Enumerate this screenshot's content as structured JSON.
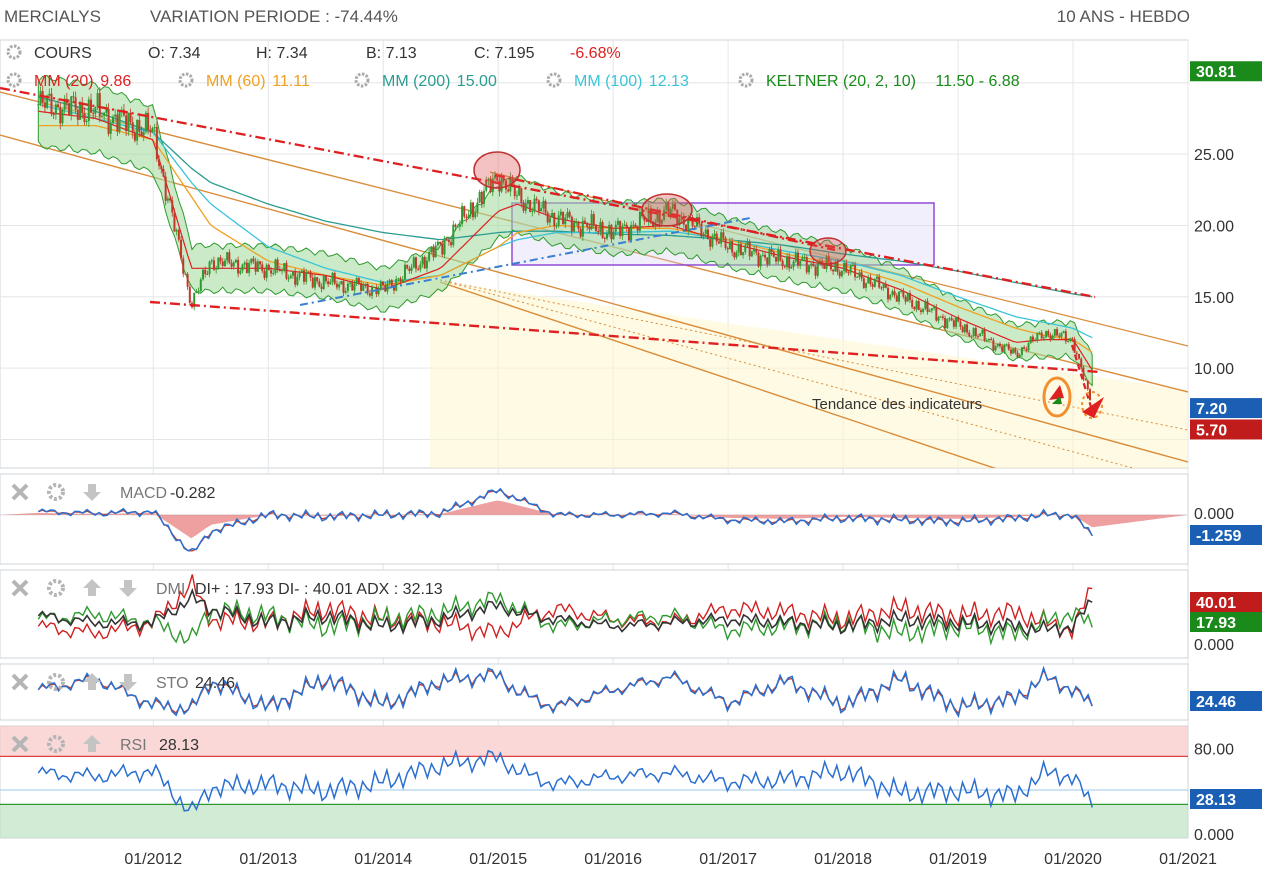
{
  "header": {
    "symbol": "MERCIALYS",
    "variation": "VARIATION PERIODE : -74.44%",
    "range": "10 ANS - HEBDO"
  },
  "quote": {
    "label": "COURS",
    "open": "O: 7.34",
    "high": "H: 7.34",
    "low": "B: 7.13",
    "close": "C: 7.195",
    "change": "-6.68%"
  },
  "overlays": [
    {
      "label": "MM (20)",
      "value": "9.86",
      "color": "#e02020"
    },
    {
      "label": "MM (60)",
      "value": "11.11",
      "color": "#f0a020"
    },
    {
      "label": "MM (200)",
      "value": "15.00",
      "color": "#2a9d8f"
    },
    {
      "label": "MM (100)",
      "value": "12.13",
      "color": "#3bc4d8"
    },
    {
      "label": "KELTNER (20, 2, 10)",
      "value": "11.50 - 6.88",
      "color": "#1a8a1a"
    }
  ],
  "annotation": "Tendance des indicateurs",
  "price_axis": {
    "ticks": [
      "25.00",
      "20.00",
      "15.00",
      "10.00"
    ],
    "tags": [
      {
        "value": "30.81",
        "color": "#1a8a1a"
      },
      {
        "value": "7.20",
        "color": "#1a5fb4"
      },
      {
        "value": "5.70",
        "color": "#c01c1c"
      }
    ]
  },
  "x_axis": {
    "labels": [
      "01/2012",
      "01/2013",
      "01/2014",
      "01/2015",
      "01/2016",
      "01/2017",
      "01/2018",
      "01/2019",
      "01/2020",
      "01/2021"
    ]
  },
  "panels": [
    {
      "name": "MACD",
      "value": "-0.282",
      "ticks": [
        "0.000"
      ],
      "tag": "-1.259",
      "tag_color": "#1a5fb4"
    },
    {
      "name": "DMI",
      "value": "DI+ : 17.93 DI- : 40.01 ADX : 32.13",
      "ticks": [
        "0.000"
      ],
      "tags": [
        {
          "value": "40.01",
          "color": "#c01c1c"
        },
        {
          "value": "17.93",
          "color": "#1a8a1a"
        }
      ]
    },
    {
      "name": "STO",
      "value": "24.46",
      "tag": "24.46",
      "tag_color": "#1a5fb4"
    },
    {
      "name": "RSI",
      "value": "28.13",
      "ticks": [
        "80.00",
        "0.000"
      ],
      "tag": "28.13",
      "tag_color": "#1a5fb4"
    }
  ],
  "chart_data": {
    "type": "line",
    "x": [
      "2011-01",
      "2011-07",
      "2012-01",
      "2012-05",
      "2012-07",
      "2013-01",
      "2013-07",
      "2014-01",
      "2014-07",
      "2015-01",
      "2015-03",
      "2015-07",
      "2016-01",
      "2016-07",
      "2017-01",
      "2017-07",
      "2018-01",
      "2018-07",
      "2019-01",
      "2019-07",
      "2019-10",
      "2020-01",
      "2020-03"
    ],
    "series": [
      {
        "name": "COURS",
        "values": [
          28.5,
          28.0,
          26.5,
          14.5,
          17.5,
          17.0,
          16.0,
          15.5,
          18.5,
          23.5,
          22.0,
          20.5,
          19.5,
          21.0,
          18.5,
          17.5,
          17.0,
          15.0,
          13.0,
          11.0,
          12.5,
          12.0,
          7.2
        ]
      },
      {
        "name": "MM (20)",
        "values": [
          28.0,
          27.5,
          26.0,
          17.0,
          17.0,
          17.0,
          16.5,
          15.5,
          17.0,
          21.0,
          21.5,
          20.5,
          19.8,
          20.0,
          18.8,
          17.8,
          17.0,
          15.5,
          13.5,
          11.8,
          12.0,
          12.0,
          9.86
        ]
      },
      {
        "name": "MM (60)",
        "values": [
          27.0,
          27.0,
          26.0,
          22.0,
          20.0,
          17.5,
          16.5,
          15.8,
          16.5,
          18.5,
          19.5,
          20.0,
          19.8,
          19.8,
          19.0,
          18.0,
          17.2,
          16.0,
          14.3,
          12.8,
          12.3,
          12.0,
          11.11
        ]
      },
      {
        "name": "MM (200)",
        "values": [
          29.0,
          28.0,
          26.5,
          24.0,
          23.0,
          21.5,
          20.3,
          19.5,
          19.0,
          19.5,
          19.6,
          19.6,
          19.4,
          19.3,
          19.0,
          18.6,
          18.0,
          17.5,
          16.8,
          16.0,
          15.6,
          15.2,
          15.0
        ]
      },
      {
        "name": "MM (100)",
        "values": [
          28.5,
          27.5,
          26.5,
          23.0,
          21.5,
          18.5,
          17.0,
          16.0,
          16.5,
          18.5,
          19.0,
          19.5,
          19.5,
          19.6,
          19.0,
          18.2,
          17.5,
          16.5,
          15.0,
          13.6,
          13.2,
          12.8,
          12.13
        ]
      }
    ],
    "ylim": [
      3,
      33
    ],
    "xlim": [
      "2010-09",
      "2021-01"
    ],
    "macd": {
      "values": [
        0.2,
        0.1,
        0.2,
        -2.4,
        -1.0,
        0.0,
        -0.1,
        0.0,
        0.1,
        1.5,
        1.0,
        0.0,
        0.0,
        0.1,
        -0.3,
        -0.4,
        -0.2,
        -0.3,
        -0.4,
        -0.2,
        0.0,
        0.0,
        -1.259
      ]
    },
    "dmi": {
      "di_plus": [
        22,
        25,
        20,
        10,
        28,
        24,
        18,
        22,
        26,
        34,
        28,
        18,
        22,
        24,
        16,
        18,
        20,
        14,
        18,
        14,
        20,
        26,
        17.93
      ],
      "di_minus": [
        18,
        14,
        20,
        42,
        22,
        20,
        28,
        22,
        20,
        14,
        20,
        28,
        22,
        20,
        28,
        26,
        22,
        28,
        24,
        26,
        20,
        16,
        40.01
      ],
      "adx": [
        24,
        20,
        20,
        34,
        28,
        20,
        24,
        18,
        22,
        30,
        26,
        22,
        18,
        20,
        22,
        20,
        18,
        22,
        20,
        18,
        16,
        18,
        32.13
      ]
    },
    "sto": {
      "values": [
        60,
        85,
        25,
        15,
        80,
        20,
        85,
        25,
        80,
        95,
        55,
        20,
        60,
        90,
        30,
        80,
        25,
        85,
        20,
        40,
        90,
        60,
        24.46
      ]
    },
    "rsi": {
      "values": [
        58,
        55,
        60,
        22,
        45,
        48,
        42,
        50,
        65,
        72,
        60,
        48,
        55,
        58,
        50,
        52,
        60,
        40,
        42,
        38,
        58,
        55,
        28.13
      ],
      "levels": [
        80,
        50,
        30
      ]
    }
  }
}
